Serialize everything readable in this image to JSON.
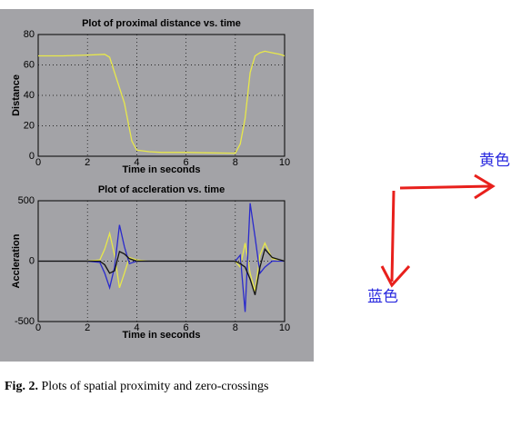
{
  "chart_data": [
    {
      "type": "line",
      "title": "Plot of proximal distance vs. time",
      "xlabel": "Time in seconds",
      "ylabel": "Distance",
      "x": [
        0,
        1,
        2,
        2.7,
        2.9,
        3,
        3.5,
        3.8,
        4,
        4.5,
        5,
        6,
        7,
        8,
        8.1,
        8.2,
        8.4,
        8.6,
        8.8,
        9,
        9.2,
        9.5,
        9.8,
        10
      ],
      "series": [
        {
          "color": "#e8e84a",
          "values": [
            66,
            66,
            66.5,
            67,
            65,
            60,
            35,
            10,
            4,
            3,
            2.5,
            2.5,
            2.2,
            2,
            5,
            8,
            25,
            55,
            66,
            68,
            69,
            68,
            67,
            66
          ]
        }
      ],
      "xlim": [
        0,
        10
      ],
      "ylim": [
        0,
        80
      ],
      "xticks": [
        0,
        2,
        4,
        6,
        8,
        10
      ],
      "yticks": [
        0,
        20,
        40,
        60,
        80
      ],
      "grid": true
    },
    {
      "type": "line",
      "title": "Plot of accleration vs. time",
      "xlabel": "Time in seconds",
      "ylabel": "Accleration",
      "x": [
        0,
        1,
        2,
        2.5,
        2.7,
        2.9,
        3.1,
        3.3,
        3.5,
        3.7,
        4,
        4.5,
        5,
        6,
        7,
        8,
        8.2,
        8.4,
        8.6,
        8.8,
        9,
        9.2,
        9.5,
        10
      ],
      "series": [
        {
          "color": "#e8e84a",
          "values": [
            0,
            0,
            0,
            10,
            100,
            230,
            50,
            -220,
            -100,
            30,
            10,
            0,
            0,
            0,
            0,
            0,
            -50,
            150,
            -100,
            -250,
            50,
            150,
            20,
            0
          ]
        },
        {
          "color": "#2a2acc",
          "values": [
            0,
            0,
            0,
            -10,
            -100,
            -220,
            -50,
            300,
            120,
            -20,
            0,
            0,
            0,
            0,
            0,
            0,
            50,
            -420,
            480,
            200,
            -100,
            -50,
            0,
            0
          ]
        },
        {
          "color": "#111111",
          "values": [
            0,
            0,
            0,
            0,
            -30,
            -100,
            -80,
            80,
            60,
            20,
            0,
            0,
            0,
            0,
            0,
            0,
            -20,
            -50,
            -150,
            -280,
            -50,
            100,
            30,
            0
          ]
        }
      ],
      "xlim": [
        0,
        10
      ],
      "ylim": [
        -500,
        500
      ],
      "xticks": [
        0,
        2,
        4,
        6,
        8,
        10
      ],
      "yticks": [
        -500,
        0,
        500
      ],
      "grid": true
    }
  ],
  "annotations": [
    "黄色",
    "蓝色"
  ],
  "caption": {
    "label": "Fig. 2.",
    "text": "Plots of spatial proximity and zero-crossings"
  }
}
